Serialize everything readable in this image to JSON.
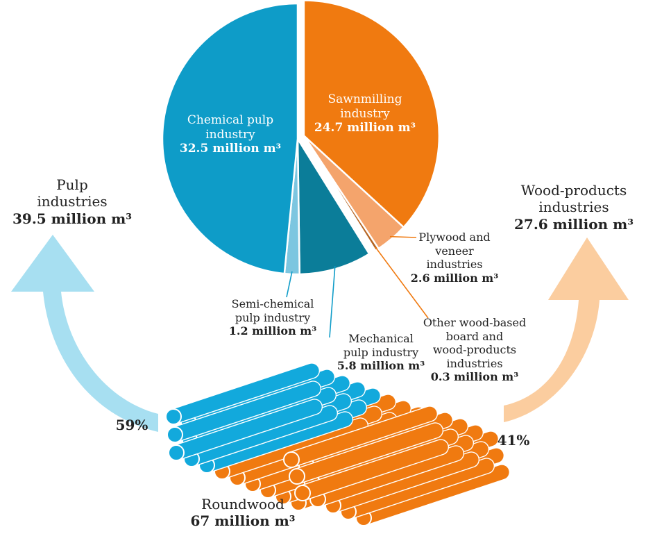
{
  "colors": {
    "pulp": "#0e9cc8",
    "wood": "#f07a10",
    "semi_chemical": "#7cc6e0",
    "mechanical": "#0b7d99",
    "plywood": "#f4a46c",
    "other_wood": "#b56422",
    "pulp_arrow": "#a7dff1",
    "wood_arrow": "#fbcd9f",
    "pulp_log": "#12a9dc",
    "wood_log": "#f07a10"
  },
  "chart_data": {
    "type": "pie",
    "unit": "million m³",
    "slices": [
      {
        "name": "Sawnmilling industry",
        "value": 24.7,
        "group": "wood",
        "exploded": true
      },
      {
        "name": "Plywood and veneer industries",
        "value": 2.6,
        "group": "wood",
        "exploded": true
      },
      {
        "name": "Other wood-based board and wood-products industries",
        "value": 0.3,
        "group": "wood",
        "exploded": true
      },
      {
        "name": "Mechanical pulp industry",
        "value": 5.8,
        "group": "pulp",
        "exploded": false
      },
      {
        "name": "Semi-chemical pulp industry",
        "value": 1.2,
        "group": "pulp",
        "exploded": false
      },
      {
        "name": "Chemical pulp industry",
        "value": 32.5,
        "group": "pulp",
        "exploded": false
      }
    ],
    "groups": [
      {
        "name": "Pulp industries",
        "value": 39.5,
        "share": 59
      },
      {
        "name": "Wood-products industries",
        "value": 27.6,
        "share": 41
      }
    ],
    "total": {
      "name": "Roundwood",
      "value": 67
    }
  },
  "labels": {
    "chemical": {
      "lines": [
        "Chemical pulp",
        "industry"
      ],
      "value": "32.5 million m³"
    },
    "sawn": {
      "lines": [
        "Sawnmilling",
        "industry"
      ],
      "value": "24.7 million m³"
    },
    "plywood": {
      "lines": [
        "Plywood and",
        "veneer",
        "industries"
      ],
      "value": "2.6 million m³"
    },
    "other": {
      "lines": [
        "Other wood-based",
        "board and",
        "wood-products",
        "industries"
      ],
      "value": "0.3 million m³"
    },
    "semi": {
      "lines": [
        "Semi-chemical",
        "pulp industry"
      ],
      "value": "1.2 million m³"
    },
    "mech": {
      "lines": [
        "Mechanical",
        "pulp industry"
      ],
      "value": "5.8 million m³"
    },
    "pulp_total": {
      "lines": [
        "Pulp",
        "industries"
      ],
      "value": "39.5 million m³"
    },
    "wood_total": {
      "lines": [
        "Wood-products",
        "industries"
      ],
      "value": "27.6 million m³"
    },
    "pulp_share": "59%",
    "wood_share": "41%",
    "roundwood": {
      "line": "Roundwood",
      "value": "67 million m³"
    }
  }
}
